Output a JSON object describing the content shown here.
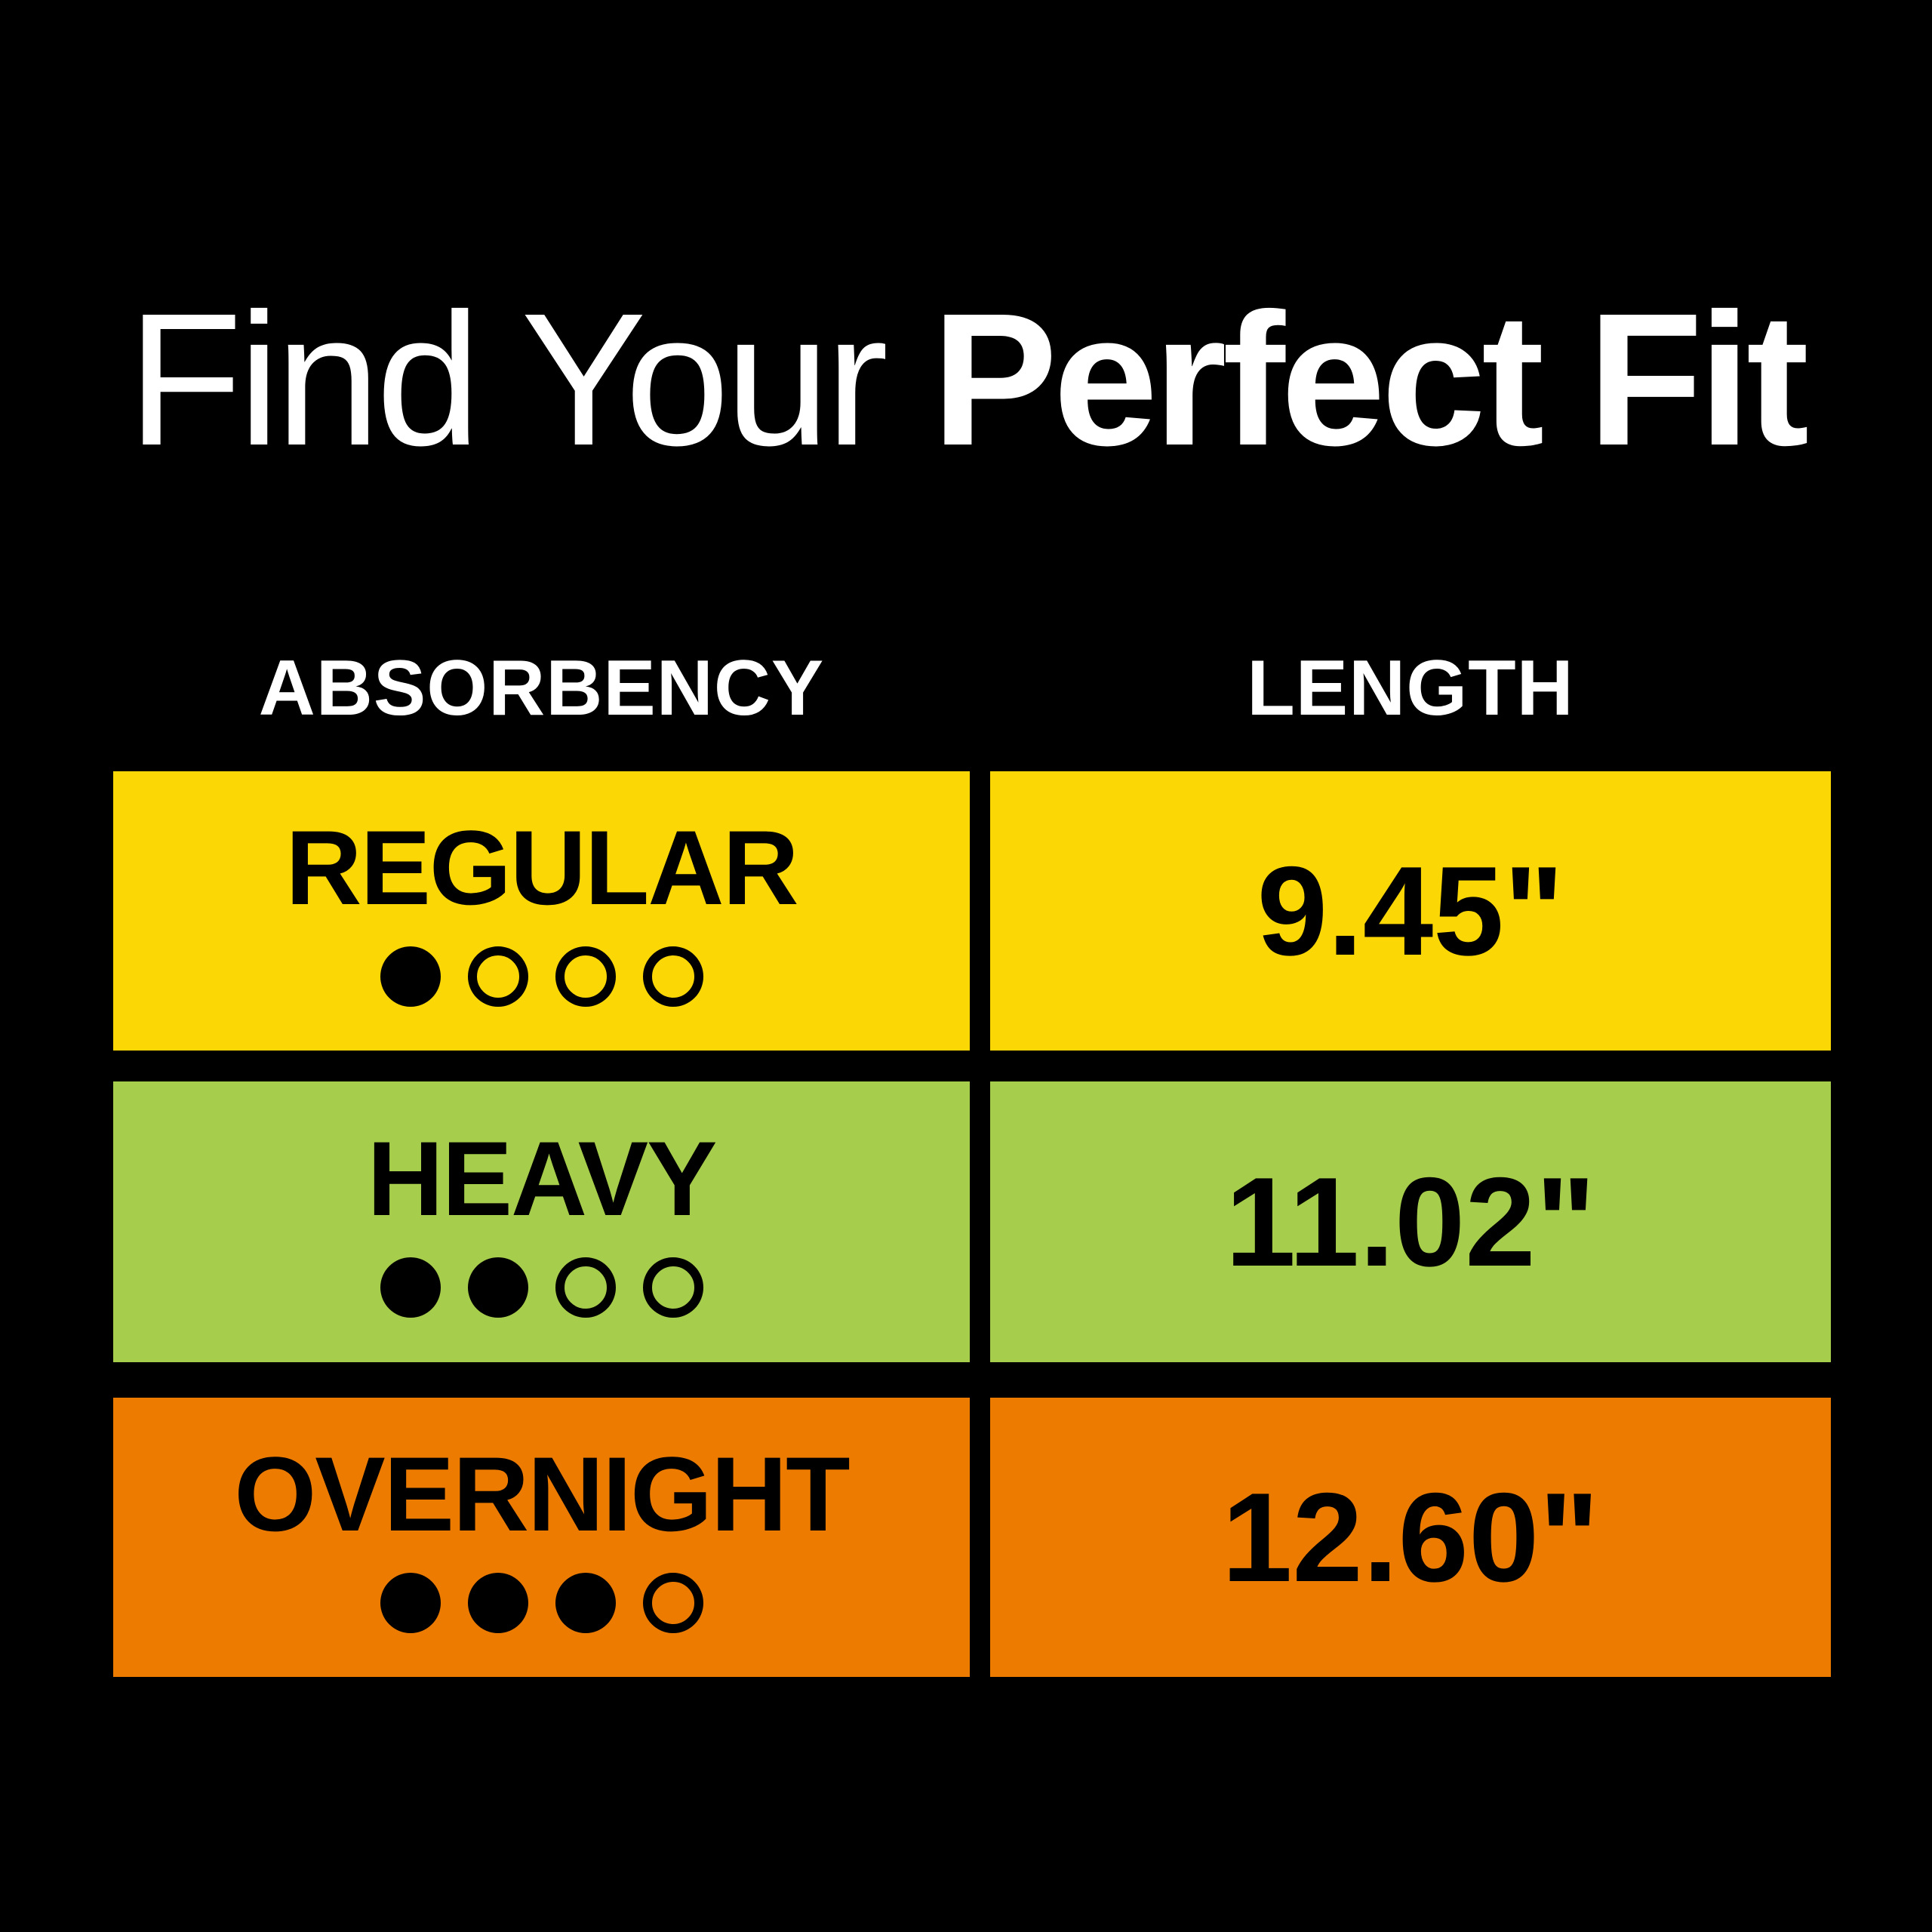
{
  "title": {
    "light": "Find Your ",
    "bold": "Perfect Fit"
  },
  "columns": {
    "absorbency": "ABSORBENCY",
    "length": "LENGTH"
  },
  "rows": [
    {
      "label": "REGULAR",
      "dots": {
        "filled": 1,
        "total": 4
      },
      "length": "9.45\"",
      "color": "#FBD705"
    },
    {
      "label": "HEAVY",
      "dots": {
        "filled": 2,
        "total": 4
      },
      "length": "11.02\"",
      "color": "#A6CD4B"
    },
    {
      "label": "OVERNIGHT",
      "dots": {
        "filled": 3,
        "total": 4
      },
      "length": "12.60\"",
      "color": "#ED7B00"
    }
  ],
  "colors": {
    "background": "#000000",
    "title_text": "#FFFFFF",
    "header_text": "#FFFFFF",
    "cell_text": "#000000"
  }
}
